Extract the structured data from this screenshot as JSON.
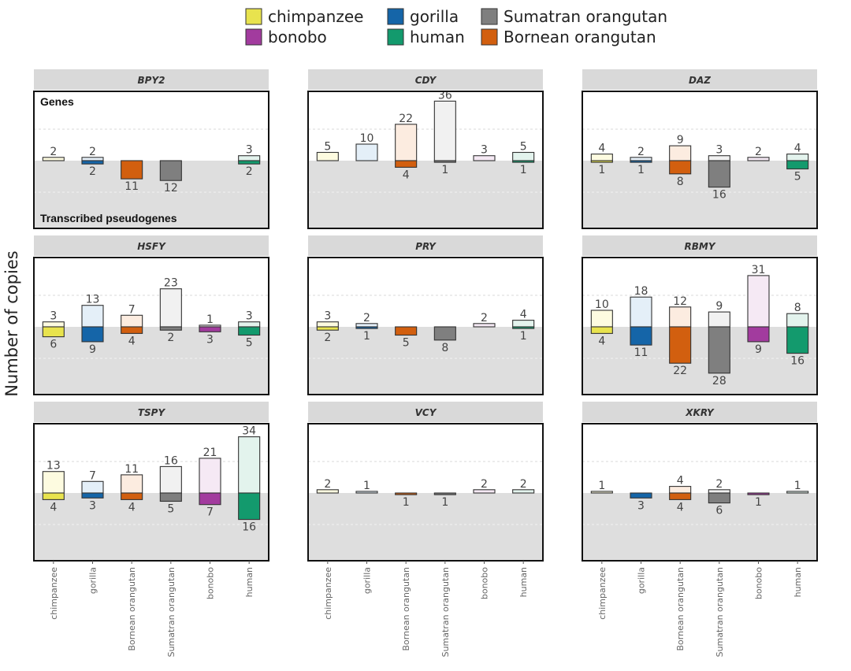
{
  "chart_data": {
    "type": "bar",
    "ylabel": "Number of copies",
    "region_labels": {
      "top": "Genes",
      "bottom": "Transcribed pseudogenes"
    },
    "ylim": [
      -30,
      36
    ],
    "legend": [
      {
        "key": "chimpanzee",
        "label": "chimpanzee",
        "color": "#e8e34e",
        "light": "#fdfbe0"
      },
      {
        "key": "bonobo",
        "label": "bonobo",
        "color": "#a23b9e",
        "light": "#f5e9f4"
      },
      {
        "key": "gorilla",
        "label": "gorilla",
        "color": "#1565a8",
        "light": "#e4eff8"
      },
      {
        "key": "human",
        "label": "human",
        "color": "#139a6d",
        "light": "#e3f3ed"
      },
      {
        "key": "sumatran",
        "label": "Sumatran orangutan",
        "color": "#7f7f7f",
        "light": "#f1f1f1"
      },
      {
        "key": "bornean",
        "label": "Bornean orangutan",
        "color": "#d25f0f",
        "light": "#fcece0"
      }
    ],
    "categories": [
      {
        "key": "chimpanzee",
        "label": "chimpanzee"
      },
      {
        "key": "gorilla",
        "label": "gorilla"
      },
      {
        "key": "bornean",
        "label": "Bornean orangutan"
      },
      {
        "key": "sumatran",
        "label": "Sumatran orangutan"
      },
      {
        "key": "bonobo",
        "label": "bonobo"
      },
      {
        "key": "human",
        "label": "human"
      }
    ],
    "facets": [
      {
        "gene": "BPY2",
        "genes": [
          2,
          2,
          0,
          0,
          0,
          3
        ],
        "pseudogenes": [
          0,
          2,
          11,
          12,
          0,
          2
        ]
      },
      {
        "gene": "CDY",
        "genes": [
          5,
          10,
          22,
          36,
          3,
          5
        ],
        "pseudogenes": [
          0,
          0,
          4,
          1,
          0,
          1
        ]
      },
      {
        "gene": "DAZ",
        "genes": [
          4,
          2,
          9,
          3,
          2,
          4
        ],
        "pseudogenes": [
          1,
          1,
          8,
          16,
          0,
          5
        ]
      },
      {
        "gene": "HSFY",
        "genes": [
          3,
          13,
          7,
          23,
          1,
          3
        ],
        "pseudogenes": [
          6,
          9,
          4,
          2,
          3,
          5
        ]
      },
      {
        "gene": "PRY",
        "genes": [
          3,
          2,
          0,
          0,
          2,
          4
        ],
        "pseudogenes": [
          2,
          1,
          5,
          8,
          0,
          1
        ]
      },
      {
        "gene": "RBMY",
        "genes": [
          10,
          18,
          12,
          9,
          31,
          8
        ],
        "pseudogenes": [
          4,
          11,
          22,
          28,
          9,
          16
        ]
      },
      {
        "gene": "TSPY",
        "genes": [
          13,
          7,
          11,
          16,
          21,
          34
        ],
        "pseudogenes": [
          4,
          3,
          4,
          5,
          7,
          16
        ]
      },
      {
        "gene": "VCY",
        "genes": [
          2,
          1,
          0,
          0,
          2,
          2
        ],
        "pseudogenes": [
          0,
          0,
          1,
          1,
          0,
          0
        ]
      },
      {
        "gene": "XKRY",
        "genes": [
          1,
          0,
          4,
          2,
          0,
          1
        ],
        "pseudogenes": [
          0,
          3,
          4,
          6,
          1,
          0
        ]
      }
    ]
  }
}
